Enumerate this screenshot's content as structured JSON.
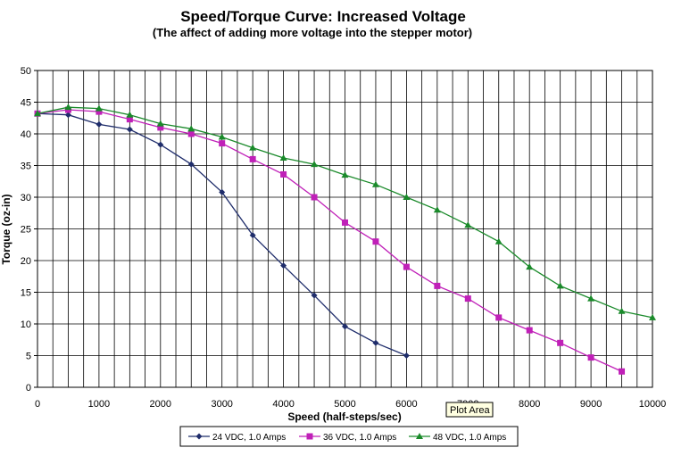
{
  "chart_data": {
    "type": "line",
    "title": "Speed/Torque Curve: Increased Voltage",
    "subtitle": "(The affect of adding more voltage into the stepper motor)",
    "xlabel": "Speed (half-steps/sec)",
    "ylabel": "Torque (oz-in)",
    "xlim": [
      0,
      10000
    ],
    "ylim": [
      0,
      50
    ],
    "x_ticks": [
      0,
      1000,
      2000,
      3000,
      4000,
      5000,
      6000,
      7000,
      8000,
      9000,
      10000
    ],
    "y_ticks": [
      0,
      5,
      10,
      15,
      20,
      25,
      30,
      35,
      40,
      45,
      50
    ],
    "grid": true,
    "legend_position": "bottom",
    "tooltip": "Plot Area",
    "series": [
      {
        "name": "24 VDC, 1.0 Amps",
        "color": "#1f2d6b",
        "marker": "diamond",
        "x": [
          0,
          500,
          1000,
          1500,
          2000,
          2500,
          3000,
          3500,
          4000,
          4500,
          5000,
          5500,
          6000
        ],
        "y": [
          43.2,
          43.0,
          41.5,
          40.7,
          38.3,
          35.2,
          30.8,
          24.0,
          19.2,
          14.5,
          9.6,
          7.0,
          5.0
        ]
      },
      {
        "name": "36 VDC, 1.0 Amps",
        "color": "#c020b8",
        "marker": "square",
        "x": [
          0,
          500,
          1000,
          1500,
          2000,
          2500,
          3000,
          3500,
          4000,
          4500,
          5000,
          5500,
          6000,
          6500,
          7000,
          7500,
          8000,
          8500,
          9000,
          9500
        ],
        "y": [
          43.2,
          43.8,
          43.5,
          42.3,
          41.0,
          40.0,
          38.5,
          36.0,
          33.6,
          30.0,
          26.0,
          23.0,
          19.0,
          16.0,
          14.0,
          11.0,
          9.0,
          7.0,
          4.7,
          2.5
        ]
      },
      {
        "name": "48 VDC, 1.0 Amps",
        "color": "#1a8a2a",
        "marker": "triangle",
        "x": [
          0,
          500,
          1000,
          1500,
          2000,
          2500,
          3000,
          3500,
          4000,
          4500,
          5000,
          5500,
          6000,
          6500,
          7000,
          7500,
          8000,
          8500,
          9000,
          9500,
          10000
        ],
        "y": [
          43.2,
          44.2,
          44.0,
          43.0,
          41.6,
          40.8,
          39.5,
          37.8,
          36.2,
          35.2,
          33.5,
          32.0,
          30.0,
          28.0,
          25.6,
          23.0,
          19.0,
          16.0,
          14.0,
          12.0,
          11.0
        ]
      }
    ]
  }
}
